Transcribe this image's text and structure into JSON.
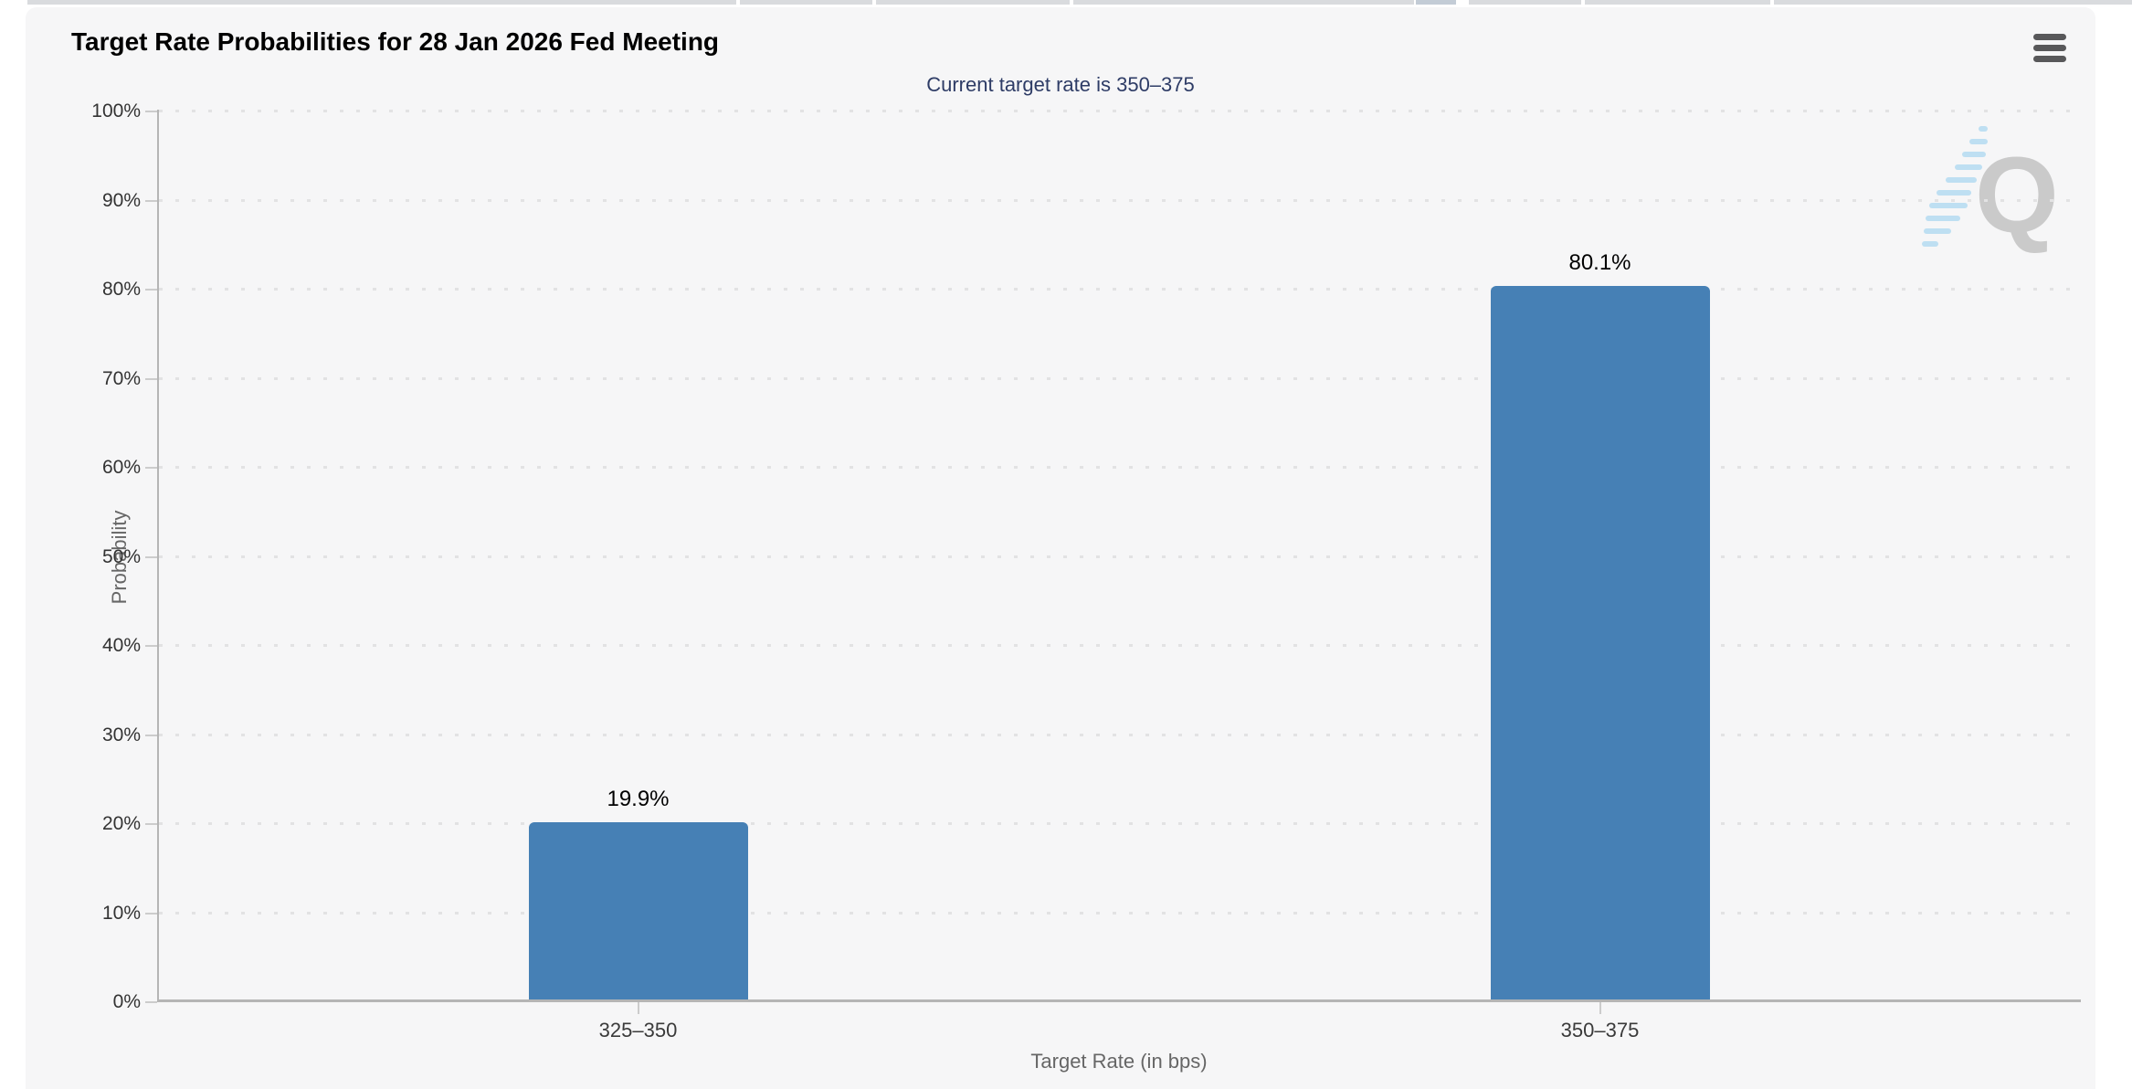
{
  "page": {
    "background": "#ffffff"
  },
  "card": {
    "background": "#f6f6f7"
  },
  "header": {
    "title": "Target Rate Probabilities for 28 Jan 2026 Fed Meeting",
    "menu_icon": "hamburger-icon"
  },
  "chart_data": {
    "type": "bar",
    "title": "Target Rate Probabilities for 28 Jan 2026 Fed Meeting",
    "subtitle": "Current target rate is 350–375",
    "categories": [
      "325–350",
      "350–375"
    ],
    "values": [
      19.9,
      80.1
    ],
    "value_labels": [
      "19.9%",
      "80.1%"
    ],
    "xlabel": "Target Rate (in bps)",
    "ylabel": "Probability",
    "ylim": [
      0,
      100
    ],
    "ytick_step": 10,
    "ytick_labels": [
      "0%",
      "10%",
      "20%",
      "30%",
      "40%",
      "50%",
      "60%",
      "70%",
      "80%",
      "90%",
      "100%"
    ],
    "grid": "dotted-horizontal",
    "legend_position": "none",
    "bar_color": "#4680b5"
  },
  "colors": {
    "bar": "#4680b5",
    "subtitle_text": "#2e3c66",
    "axis_line": "#b5b5b5",
    "grid_dot": "#e2e2e3",
    "tick": "#cccccc",
    "axis_title_text": "#666666",
    "tick_label_text": "#333333",
    "card_background": "#f6f6f7",
    "hamburger_icon": "#58585a",
    "watermark_gray": "#c6c6c6",
    "watermark_blue": "#b8ddf2"
  },
  "watermark": {
    "letter": "Q"
  }
}
